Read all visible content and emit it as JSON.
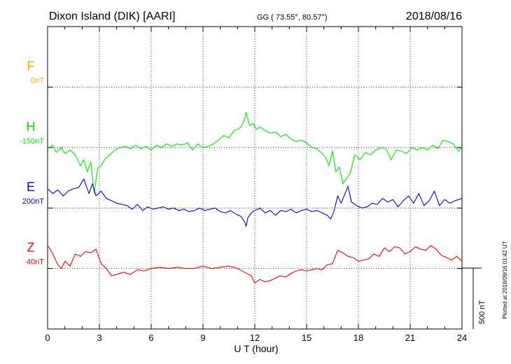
{
  "header": {
    "station": "Dixon Island (DIK)  [AARI]",
    "coords": "GG ( 73.55°,  80.57°)",
    "date": "2018/08/16"
  },
  "plotted_note": "Plotted at 2018/09/16 01:42 UT",
  "scale_bar": {
    "label": "500 nT",
    "value": 500
  },
  "chart_data": {
    "type": "line",
    "xlabel": "U T (hour)",
    "xlim": [
      0,
      24
    ],
    "xticks": [
      0,
      3,
      6,
      9,
      12,
      15,
      18,
      21,
      24
    ],
    "grid": true,
    "y_units_per_band": 500,
    "series": [
      {
        "name": "F",
        "baseline_label": "0nT",
        "color": "#ffa500",
        "x": [],
        "y": []
      },
      {
        "name": "H",
        "baseline_label": "-150nT",
        "color": "#00e800",
        "x": [
          0,
          0.3,
          0.5,
          0.8,
          1.0,
          1.3,
          1.6,
          1.9,
          2.1,
          2.3,
          2.5,
          2.7,
          2.9,
          3.1,
          3.3,
          3.6,
          3.9,
          4.2,
          4.5,
          4.8,
          5.1,
          5.4,
          5.7,
          6.0,
          6.3,
          6.6,
          6.9,
          7.2,
          7.5,
          7.8,
          8.1,
          8.4,
          8.7,
          9.0,
          9.3,
          9.6,
          9.9,
          10.2,
          10.5,
          10.8,
          11.0,
          11.2,
          11.4,
          11.5,
          11.7,
          11.9,
          12.1,
          12.3,
          12.6,
          12.9,
          13.2,
          13.5,
          13.8,
          14.1,
          14.4,
          14.7,
          15.0,
          15.3,
          15.6,
          15.9,
          16.1,
          16.3,
          16.5,
          16.7,
          16.9,
          17.1,
          17.3,
          17.5,
          17.8,
          18.1,
          18.4,
          18.7,
          19.0,
          19.3,
          19.6,
          19.9,
          20.2,
          20.5,
          20.8,
          21.1,
          21.4,
          21.7,
          22.0,
          22.3,
          22.6,
          22.9,
          23.2,
          23.5,
          23.8,
          24.0
        ],
        "y": [
          -10,
          20,
          -40,
          0,
          -50,
          -20,
          -60,
          -150,
          -100,
          -200,
          -120,
          -380,
          -170,
          -150,
          -100,
          -60,
          -20,
          0,
          10,
          -10,
          20,
          -10,
          10,
          -20,
          20,
          0,
          30,
          10,
          30,
          20,
          40,
          -20,
          30,
          0,
          10,
          30,
          60,
          100,
          80,
          140,
          150,
          170,
          230,
          290,
          180,
          200,
          150,
          170,
          140,
          120,
          130,
          90,
          110,
          70,
          50,
          60,
          40,
          0,
          -10,
          -50,
          -80,
          -150,
          -30,
          -200,
          -160,
          -300,
          -260,
          -220,
          -60,
          -100,
          -40,
          -60,
          -20,
          0,
          -10,
          -100,
          -20,
          -30,
          -50,
          0,
          -20,
          0,
          -20,
          20,
          -10,
          60,
          50,
          30,
          -30,
          0
        ]
      },
      {
        "name": "E",
        "baseline_label": "200nT",
        "color": "#0000ee",
        "x": [
          0,
          0.3,
          0.6,
          0.9,
          1.2,
          1.5,
          1.8,
          2.1,
          2.4,
          2.6,
          2.8,
          3.1,
          3.4,
          3.7,
          4.0,
          4.3,
          4.6,
          4.9,
          5.2,
          5.5,
          5.8,
          6.1,
          6.4,
          6.7,
          7.0,
          7.3,
          7.6,
          7.9,
          8.2,
          8.5,
          8.8,
          9.1,
          9.4,
          9.7,
          10.0,
          10.3,
          10.6,
          10.9,
          11.2,
          11.4,
          11.5,
          11.6,
          11.8,
          12.0,
          12.3,
          12.6,
          12.9,
          13.2,
          13.5,
          13.8,
          14.1,
          14.4,
          14.7,
          15.0,
          15.3,
          15.6,
          15.9,
          16.2,
          16.4,
          16.6,
          16.8,
          17.0,
          17.2,
          17.4,
          17.6,
          17.9,
          18.2,
          18.5,
          18.8,
          19.1,
          19.4,
          19.7,
          20.0,
          20.3,
          20.6,
          20.9,
          21.2,
          21.5,
          21.8,
          22.1,
          22.4,
          22.7,
          23.0,
          23.3,
          23.6,
          24.0
        ],
        "y": [
          160,
          120,
          150,
          100,
          140,
          160,
          170,
          240,
          120,
          200,
          100,
          140,
          80,
          60,
          40,
          30,
          20,
          -10,
          30,
          -20,
          10,
          -10,
          0,
          10,
          -10,
          0,
          -20,
          -10,
          -30,
          -20,
          0,
          -20,
          -10,
          0,
          -30,
          -40,
          -20,
          -50,
          -70,
          -110,
          -150,
          -80,
          -40,
          -20,
          0,
          -40,
          -20,
          -60,
          -20,
          -30,
          -10,
          -40,
          -20,
          -10,
          -30,
          -20,
          -40,
          -60,
          -90,
          -20,
          100,
          40,
          110,
          180,
          50,
          20,
          0,
          10,
          40,
          30,
          80,
          50,
          70,
          10,
          60,
          100,
          40,
          120,
          20,
          60,
          140,
          20,
          70,
          40,
          60,
          80
        ]
      },
      {
        "name": "Z",
        "baseline_label": "40nT",
        "color": "#ff0000",
        "x": [
          0,
          0.2,
          0.4,
          0.6,
          0.8,
          1.0,
          1.3,
          1.6,
          1.9,
          2.2,
          2.5,
          2.8,
          3.1,
          3.4,
          3.7,
          4.0,
          4.4,
          4.8,
          5.2,
          5.6,
          6.0,
          6.5,
          7.0,
          7.5,
          8.0,
          8.5,
          9.0,
          9.5,
          10.0,
          10.5,
          11.0,
          11.4,
          11.8,
          12.0,
          12.3,
          12.6,
          12.9,
          13.2,
          13.5,
          13.8,
          14.1,
          14.4,
          14.7,
          15.0,
          15.3,
          15.6,
          15.9,
          16.2,
          16.5,
          16.8,
          17.1,
          17.4,
          17.7,
          18.0,
          18.3,
          18.6,
          18.9,
          19.2,
          19.5,
          19.8,
          20.1,
          20.4,
          20.7,
          21.0,
          21.3,
          21.6,
          21.9,
          22.2,
          22.5,
          22.8,
          23.1,
          23.4,
          23.7,
          24.0
        ],
        "y": [
          190,
          150,
          90,
          30,
          0,
          60,
          20,
          120,
          100,
          140,
          130,
          160,
          40,
          0,
          -60,
          -50,
          -30,
          -50,
          -10,
          -20,
          0,
          10,
          0,
          10,
          0,
          0,
          20,
          0,
          10,
          20,
          0,
          -30,
          -60,
          -120,
          -90,
          -110,
          -100,
          -80,
          -60,
          -70,
          -40,
          -20,
          -10,
          -20,
          -10,
          0,
          -10,
          30,
          40,
          150,
          130,
          100,
          90,
          60,
          70,
          80,
          120,
          100,
          170,
          140,
          180,
          170,
          120,
          140,
          180,
          160,
          150,
          190,
          160,
          110,
          90,
          70,
          100,
          60
        ]
      }
    ]
  }
}
